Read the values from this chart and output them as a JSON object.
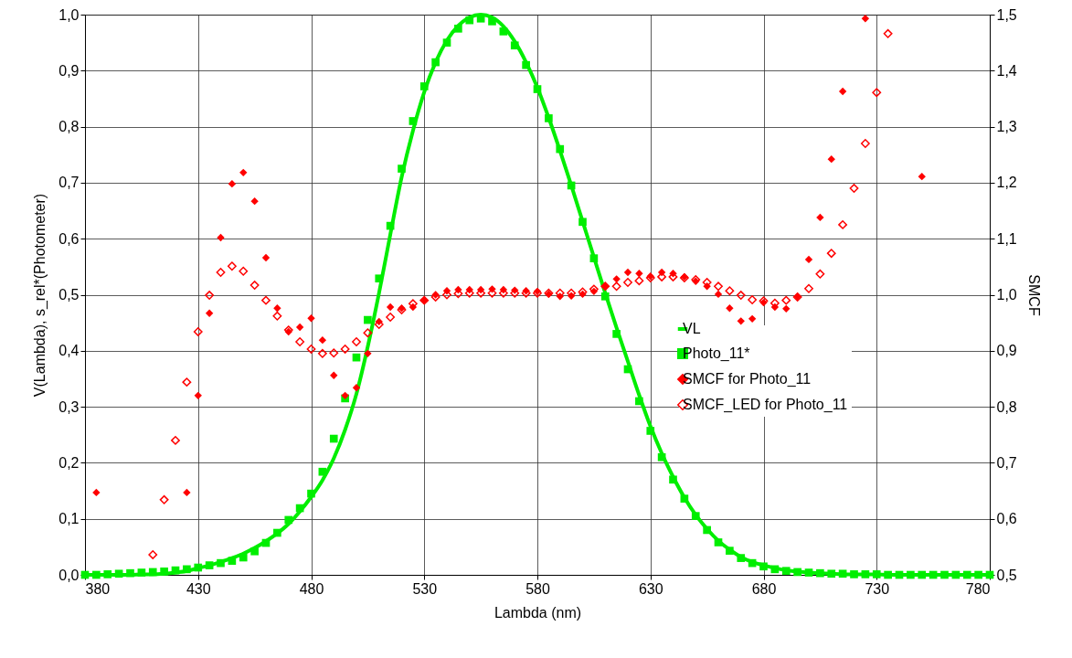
{
  "chart_data": {
    "type": "scatter",
    "xlabel": "Lambda (nm)",
    "ylabel": "V(Lambda), s_rel*(Photometer)",
    "y2label": "SMCF",
    "xlim": [
      380,
      780
    ],
    "xticks": [
      380,
      430,
      480,
      530,
      580,
      630,
      680,
      730,
      780
    ],
    "ylim": [
      0,
      1
    ],
    "yticks": [
      {
        "value": 0,
        "label": "0,0"
      },
      {
        "value": 0.1,
        "label": "0,1"
      },
      {
        "value": 0.2,
        "label": "0,2"
      },
      {
        "value": 0.3,
        "label": "0,3"
      },
      {
        "value": 0.4,
        "label": "0,4"
      },
      {
        "value": 0.5,
        "label": "0,5"
      },
      {
        "value": 0.6,
        "label": "0,6"
      },
      {
        "value": 0.7,
        "label": "0,7"
      },
      {
        "value": 0.8,
        "label": "0,8"
      },
      {
        "value": 0.9,
        "label": "0,9"
      },
      {
        "value": 1,
        "label": "1,0"
      }
    ],
    "y2lim": [
      0.5,
      1.5
    ],
    "y2ticks": [
      {
        "value": 0.5,
        "label": "0,5"
      },
      {
        "value": 0.6,
        "label": "0,6"
      },
      {
        "value": 0.7,
        "label": "0,7"
      },
      {
        "value": 0.8,
        "label": "0,8"
      },
      {
        "value": 0.9,
        "label": "0,9"
      },
      {
        "value": 1,
        "label": "1,0"
      },
      {
        "value": 1.1,
        "label": "1,1"
      },
      {
        "value": 1.2,
        "label": "1,2"
      },
      {
        "value": 1.3,
        "label": "1,3"
      },
      {
        "value": 1.4,
        "label": "1,4"
      },
      {
        "value": 1.5,
        "label": "1,5"
      }
    ],
    "grid": true,
    "legend": "right",
    "x": [
      380,
      385,
      390,
      395,
      400,
      405,
      410,
      415,
      420,
      425,
      430,
      435,
      440,
      445,
      450,
      455,
      460,
      465,
      470,
      475,
      480,
      485,
      490,
      495,
      500,
      505,
      510,
      515,
      520,
      525,
      530,
      535,
      540,
      545,
      550,
      555,
      560,
      565,
      570,
      575,
      580,
      585,
      590,
      595,
      600,
      605,
      610,
      615,
      620,
      625,
      630,
      635,
      640,
      645,
      650,
      655,
      660,
      665,
      670,
      675,
      680,
      685,
      690,
      695,
      700,
      705,
      710,
      715,
      720,
      725,
      730,
      735,
      740,
      745,
      750,
      755,
      760,
      765,
      770,
      775,
      780
    ],
    "series": [
      {
        "name": "VL",
        "type": "line",
        "color": "#00ee00",
        "values": [
          0,
          0,
          0,
          0,
          0,
          0.001,
          0.001,
          0.002,
          0.004,
          0.007,
          0.012,
          0.017,
          0.023,
          0.03,
          0.038,
          0.048,
          0.06,
          0.074,
          0.091,
          0.113,
          0.139,
          0.169,
          0.208,
          0.259,
          0.323,
          0.407,
          0.503,
          0.608,
          0.71,
          0.793,
          0.862,
          0.915,
          0.954,
          0.98,
          0.995,
          1.0,
          0.995,
          0.979,
          0.952,
          0.915,
          0.87,
          0.816,
          0.757,
          0.695,
          0.631,
          0.567,
          0.503,
          0.441,
          0.381,
          0.321,
          0.265,
          0.217,
          0.175,
          0.138,
          0.107,
          0.082,
          0.061,
          0.045,
          0.032,
          0.023,
          0.017,
          0.012,
          0.008,
          0.006,
          0.004,
          0.003,
          0.002,
          0.001,
          0.001,
          0.001,
          0.001,
          0,
          0,
          0,
          0,
          0,
          0,
          0,
          0,
          0,
          0
        ]
      },
      {
        "name": "Photo_11*",
        "marker": "square",
        "color": "#00ee00",
        "values": [
          0,
          0,
          0.001,
          0.002,
          0.003,
          0.004,
          0.005,
          0.006,
          0.008,
          0.01,
          0.013,
          0.017,
          0.021,
          0.025,
          0.031,
          0.042,
          0.057,
          0.075,
          0.098,
          0.119,
          0.145,
          0.184,
          0.243,
          0.315,
          0.388,
          0.455,
          0.529,
          0.623,
          0.725,
          0.81,
          0.872,
          0.915,
          0.95,
          0.975,
          0.99,
          0.993,
          0.988,
          0.97,
          0.945,
          0.91,
          0.867,
          0.815,
          0.76,
          0.695,
          0.63,
          0.565,
          0.497,
          0.43,
          0.367,
          0.31,
          0.257,
          0.21,
          0.17,
          0.136,
          0.105,
          0.08,
          0.058,
          0.043,
          0.03,
          0.021,
          0.015,
          0.01,
          0.007,
          0.005,
          0.004,
          0.003,
          0.002,
          0.002,
          0.001,
          0.001,
          0.001,
          0,
          0,
          0,
          0,
          0,
          0,
          0,
          0,
          0,
          0
        ]
      },
      {
        "name": "SMCF for Photo_11",
        "marker": "diamond",
        "axis": "y2",
        "color": "#ff0000",
        "x": [
          385,
          425,
          430,
          435,
          440,
          445,
          450,
          455,
          460,
          465,
          470,
          475,
          480,
          485,
          490,
          495,
          500,
          505,
          510,
          515,
          520,
          525,
          530,
          535,
          540,
          545,
          550,
          555,
          560,
          565,
          570,
          575,
          580,
          585,
          590,
          595,
          600,
          605,
          610,
          615,
          620,
          625,
          630,
          635,
          640,
          645,
          650,
          655,
          660,
          665,
          670,
          675,
          680,
          685,
          690,
          695,
          700,
          705,
          710,
          715,
          725,
          750
        ],
        "values": [
          0.647,
          0.647,
          0.82,
          0.967,
          1.102,
          1.198,
          1.218,
          1.167,
          1.066,
          0.976,
          0.934,
          0.942,
          0.958,
          0.919,
          0.856,
          0.82,
          0.834,
          0.895,
          0.952,
          0.978,
          0.976,
          0.978,
          0.99,
          1.0,
          1.007,
          1.009,
          1.009,
          1.009,
          1.01,
          1.009,
          1.008,
          1.007,
          1.006,
          1.001,
          0.997,
          0.998,
          1.001,
          1.006,
          1.015,
          1.028,
          1.04,
          1.038,
          1.033,
          1.04,
          1.038,
          1.032,
          1.024,
          1.015,
          1.001,
          0.976,
          0.953,
          0.957,
          0.986,
          0.978,
          0.975,
          0.997,
          1.063,
          1.138,
          1.242,
          1.363,
          1.493,
          1.211
        ]
      },
      {
        "name": "SMCF_LED for Photo_11",
        "marker": "diamond-open",
        "axis": "y2",
        "color": "#ff0000",
        "x": [
          410,
          415,
          420,
          425,
          430,
          435,
          440,
          445,
          450,
          455,
          460,
          465,
          470,
          475,
          480,
          485,
          490,
          495,
          500,
          505,
          510,
          515,
          520,
          525,
          530,
          535,
          540,
          545,
          550,
          555,
          560,
          565,
          570,
          575,
          580,
          585,
          590,
          595,
          600,
          605,
          610,
          615,
          620,
          625,
          630,
          635,
          640,
          645,
          650,
          655,
          660,
          665,
          670,
          675,
          680,
          685,
          690,
          695,
          700,
          705,
          710,
          715,
          720,
          725,
          730,
          735
        ],
        "values": [
          0.536,
          0.634,
          0.74,
          0.844,
          0.934,
          0.999,
          1.04,
          1.051,
          1.042,
          1.017,
          0.99,
          0.962,
          0.937,
          0.916,
          0.903,
          0.895,
          0.896,
          0.903,
          0.916,
          0.932,
          0.947,
          0.96,
          0.973,
          0.984,
          0.99,
          0.996,
          1.0,
          1.002,
          1.003,
          1.003,
          1.003,
          1.003,
          1.003,
          1.003,
          1.003,
          1.003,
          1.003,
          1.003,
          1.005,
          1.01,
          1.015,
          1.015,
          1.022,
          1.025,
          1.03,
          1.032,
          1.032,
          1.03,
          1.027,
          1.022,
          1.015,
          1.007,
          0.999,
          0.991,
          0.989,
          0.985,
          0.99,
          0.996,
          1.011,
          1.037,
          1.074,
          1.125,
          1.19,
          1.27,
          1.361,
          1.466
        ]
      }
    ]
  }
}
